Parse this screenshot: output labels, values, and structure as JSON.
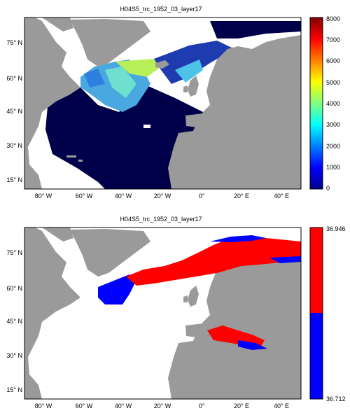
{
  "maps": [
    {
      "title": "H04S5_trc_1952_03_layer17",
      "y_ticks": [
        "75° N",
        "60° N",
        "45° N",
        "30° N",
        "15° N"
      ],
      "x_ticks": [
        "80° W",
        "60° W",
        "40° W",
        "20° W",
        "0°",
        "20° E",
        "40° E"
      ],
      "colorbar": {
        "type": "continuous",
        "labels": [
          "8000",
          "7000",
          "6000",
          "5000",
          "4000",
          "3000",
          "2000",
          "1000",
          "0"
        ]
      }
    },
    {
      "title": "H04S5_trc_1952_03_layer17",
      "y_ticks": [
        "75° N",
        "60° N",
        "45° N",
        "30° N",
        "15° N"
      ],
      "x_ticks": [
        "80° W",
        "60° W",
        "40° W",
        "20° W",
        "0°",
        "20° E",
        "40° E"
      ],
      "colorbar": {
        "type": "two-class",
        "top_label": "36.946",
        "bottom_label": "36.712",
        "colors": [
          "#ff0000",
          "#0000ff"
        ]
      }
    }
  ],
  "colors": {
    "land": "#9a9a9a",
    "ocean_deep": "#00004a",
    "nodata": "#ffffff",
    "high_class": "#ff0000",
    "low_class": "#0000ff"
  }
}
